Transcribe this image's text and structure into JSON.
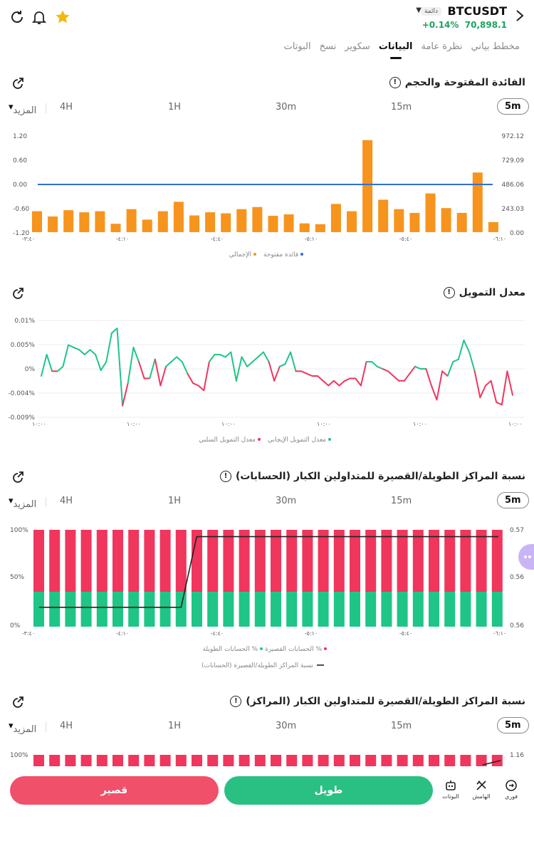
{
  "header": {
    "symbol": "BTCUSDT",
    "badge": "دائمة",
    "price": "70,898.1",
    "change": "+0.14%"
  },
  "tabs": [
    "مخطط بياني",
    "نظرة عامة",
    "البيانات",
    "سكوير",
    "نسخ",
    "البوتات"
  ],
  "active_tab": 2,
  "timeframes": {
    "t5": "5m",
    "t15": "15m",
    "t30": "30m",
    "t1h": "1H",
    "t4h": "4H",
    "more": "المزيد"
  },
  "section1": {
    "title": "الفائدة المفتوحة والحجم",
    "legend_oi": "فائدة مفتوحة",
    "legend_total": "الإجمالي"
  },
  "section2": {
    "title": "معدل التمويل",
    "legend_pos": "معدل التمويل الإيجابي",
    "legend_neg": "معدل التمويل السلبي"
  },
  "section3": {
    "title": "نسبة المراكز الطويلة/القصيرة للمتداولين الكبار (الحسابات)",
    "legend_short": "الحسابات القصيرة %",
    "legend_long": "الحسابات الطويلة %",
    "legend_ratio": "نسبة المراكز الطويلة/القصيرة (الحسابات)"
  },
  "section4": {
    "title": "نسبة المراكز الطويلة/القصيرة للمتداولين الكبار (المراكز)"
  },
  "bottom": {
    "short": "قصير",
    "long": "طويل",
    "bots": "البوتات",
    "margin": "الهامش",
    "spot": "فوري"
  },
  "colors": {
    "orange": "#f7941d",
    "blue": "#2f6fd6",
    "green": "#1ec586",
    "red": "#f0365c"
  },
  "chart_data": [
    {
      "type": "bar",
      "title": "الفائدة المفتوحة والحجم",
      "y_left_ticks": [
        "1.20",
        "0.60",
        "0.00",
        "-0.60",
        "-1.20"
      ],
      "y_right_ticks": [
        "972.12",
        "729.09",
        "486.06",
        "243.03",
        "0.00"
      ],
      "x_ticks": [
        "-٣:٤٠",
        "-٤:١٠",
        "-٤:٤٠",
        "-٥:١٠",
        "-٥:٤٠",
        "-٦:١٠"
      ],
      "values": [
        100,
        75,
        105,
        95,
        100,
        40,
        110,
        60,
        100,
        145,
        80,
        95,
        90,
        110,
        120,
        78,
        85,
        42,
        38,
        135,
        100,
        440,
        155,
        110,
        92,
        185,
        115,
        92,
        285,
        48
      ],
      "oi_line": 0.0
    },
    {
      "type": "line",
      "title": "معدل التمويل",
      "y_ticks": [
        "0.01%",
        "0.005%",
        "0%",
        "-0.004%",
        "-0.009%"
      ],
      "x_ticks": [
        "١٠:٠٠",
        "١٠:٠٠",
        "١٠:٠٠",
        "١٠:٠٠",
        "١٠:٠٠",
        "١٠:٠٠"
      ],
      "values": [
        -0.0015,
        0.003,
        -0.0005,
        -0.0005,
        0.0005,
        0.005,
        0.0045,
        0.004,
        0.003,
        0.004,
        0.003,
        -0.0003,
        0.0015,
        0.0075,
        0.0085,
        -0.0077,
        -0.003,
        0.0045,
        0.0015,
        -0.002,
        -0.002,
        0.002,
        -0.0035,
        0.0005,
        0.0015,
        0.0025,
        0.0015,
        -0.001,
        -0.003,
        -0.0035,
        -0.0045,
        0.0015,
        0.003,
        0.003,
        0.0025,
        0.0035,
        -0.0025,
        0.0025,
        0.0005,
        0.0015,
        0.0025,
        0.0035,
        0.0015,
        -0.0025,
        0.0005,
        0.001,
        0.0035,
        -0.0005,
        -0.0005,
        -0.001,
        -0.0015,
        -0.0015,
        -0.0025,
        -0.0035,
        -0.0025,
        -0.0035,
        -0.0025,
        -0.002,
        -0.002,
        -0.0035,
        0.0015,
        0.0015,
        0.0005,
        0.0,
        -0.0005,
        -0.0015,
        -0.0025,
        -0.0025,
        -0.001,
        0.0005,
        0.0,
        0.0,
        -0.0035,
        -0.0065,
        -0.0005,
        -0.0015,
        0.0015,
        0.002,
        0.006,
        0.0035,
        -0.0005,
        -0.006,
        -0.0035,
        -0.0025,
        -0.007,
        -0.0075,
        -0.0005,
        -0.0055
      ]
    },
    {
      "type": "bar",
      "title": "نسبة المراكز الطويلة/القصيرة للمتداولين الكبار (الحسابات)",
      "y_left_ticks": [
        "100%",
        "50%",
        "0%"
      ],
      "y_right_ticks": [
        "0.57",
        "0.56",
        "0.56"
      ],
      "x_ticks": [
        "-٣:٤٠",
        "-٤:١٠",
        "-٤:٤٠",
        "-٥:١٠",
        "-٥:٤٠",
        "-٦:١٠"
      ],
      "long_pct": [
        36,
        36,
        36,
        36,
        36,
        36,
        36,
        36,
        36,
        36,
        36,
        36,
        36,
        36,
        36,
        36,
        36,
        36,
        36,
        36,
        36,
        36,
        36,
        36,
        36,
        36,
        36,
        36,
        36,
        36
      ],
      "ratio_steps": {
        "low": 0.2,
        "high": 0.93,
        "switch_index": 9
      }
    }
  ]
}
